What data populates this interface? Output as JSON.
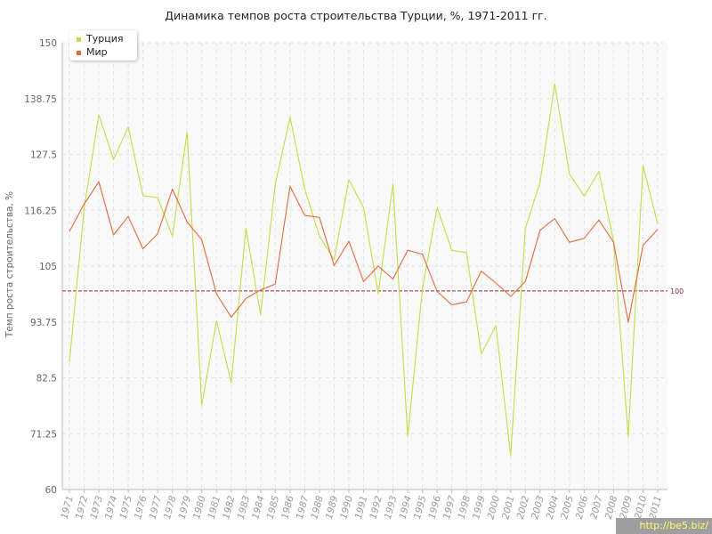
{
  "chart_data": {
    "type": "line",
    "title": "Динамика темпов роста строительства Турции, %, 1971-2011 гг.",
    "ylabel": "Темп роста строительства, %",
    "xlabel": "",
    "ylim": [
      60,
      150
    ],
    "yticks": [
      "60",
      "71.25",
      "82.5",
      "93.75",
      "105",
      "116.25",
      "127.5",
      "138.75",
      "150"
    ],
    "categories": [
      "1971",
      "1972",
      "1973",
      "1974",
      "1975",
      "1976",
      "1977",
      "1978",
      "1979",
      "1980",
      "1981",
      "1982",
      "1983",
      "1984",
      "1985",
      "1986",
      "1987",
      "1988",
      "1989",
      "1990",
      "1991",
      "1992",
      "1993",
      "1994",
      "1995",
      "1996",
      "1997",
      "1998",
      "1999",
      "2000",
      "2001",
      "2002",
      "2003",
      "2004",
      "2005",
      "2006",
      "2007",
      "2008",
      "2009",
      "2010",
      "2011"
    ],
    "series": [
      {
        "name": "Турция",
        "color": "#c5dc48",
        "values": [
          85.7,
          116.5,
          135.5,
          126.5,
          133,
          119.2,
          118.8,
          111,
          132,
          77,
          94,
          81.5,
          112.6,
          95.2,
          121.5,
          135,
          120.5,
          111,
          106.3,
          122.4,
          116.8,
          99.4,
          121.5,
          70.6,
          100.4,
          116.8,
          108.2,
          107.7,
          87.3,
          93,
          66.8,
          112.6,
          121.9,
          141.7,
          123.6,
          119.1,
          124.1,
          110,
          70.6,
          125.2,
          113.5
        ]
      },
      {
        "name": "Мир",
        "color": "#e06b3e",
        "values": [
          112,
          117.5,
          122,
          111.3,
          115,
          108.5,
          111.5,
          120.5,
          113.9,
          110.3,
          99.4,
          94.7,
          98.5,
          100.2,
          101.4,
          121.1,
          115.2,
          114.8,
          105.1,
          110,
          101.9,
          105,
          102.4,
          108.2,
          107.4,
          99.9,
          97.2,
          97.8,
          104,
          101.6,
          98.9,
          101.9,
          112.2,
          114.6,
          109.8,
          110.6,
          114.3,
          109.8,
          93.7,
          109.2,
          112.4
        ]
      }
    ],
    "reference_line": {
      "value": 100,
      "label": "100",
      "color": "#8b2a3a"
    },
    "legend_placement": "top-left",
    "grid": true
  },
  "watermark": "http://be5.biz/"
}
